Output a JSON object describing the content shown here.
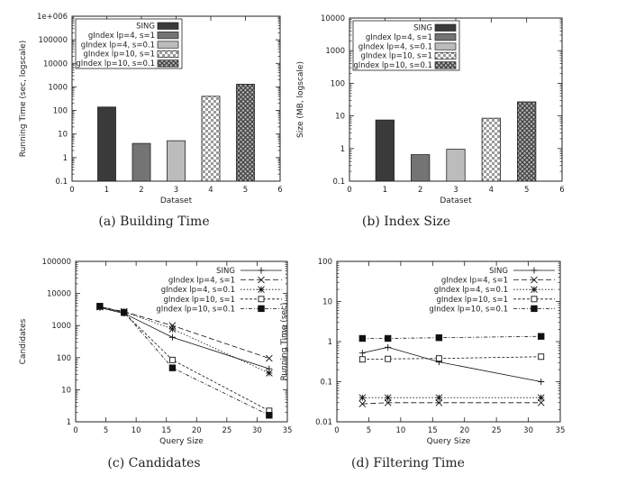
{
  "figure": {
    "caption_a": "(a) Building Time",
    "caption_b": "(b) Index Size",
    "caption_c": "(c) Candidates",
    "caption_d": "(d) Filtering Time"
  },
  "chart_data": [
    {
      "id": "a",
      "type": "bar",
      "title": "(a) Building Time",
      "xlabel": "Dataset",
      "ylabel": "Running Time (sec, logscale)",
      "yscale": "log",
      "ylim": [
        0.1,
        1000000
      ],
      "xlim": [
        0,
        6
      ],
      "xticks": [
        "0",
        "1",
        "2",
        "3",
        "4",
        "5",
        "6"
      ],
      "yticks": [
        0.1,
        1,
        10,
        100,
        1000,
        10000,
        100000,
        1000000
      ],
      "yticklabels": [
        "0.1",
        "1",
        "10",
        "100",
        "1000",
        "10000",
        "100000",
        "1e+006"
      ],
      "legend_position": "top-left",
      "series": [
        {
          "name": "SING",
          "x": 1,
          "value": 140,
          "pattern": "dark"
        },
        {
          "name": "gIndex lp=4, s=1",
          "x": 2,
          "value": 4,
          "pattern": "mid"
        },
        {
          "name": "gIndex lp=4, s=0.1",
          "x": 3,
          "value": 5.2,
          "pattern": "light"
        },
        {
          "name": "gIndex lp=10, s=1",
          "x": 4,
          "value": 400,
          "pattern": "check"
        },
        {
          "name": "gIndex lp=10, s=0.1",
          "x": 5,
          "value": 1300,
          "pattern": "cross"
        }
      ]
    },
    {
      "id": "b",
      "type": "bar",
      "title": "(b) Index Size",
      "xlabel": "Dataset",
      "ylabel": "Size (MB, logscale)",
      "yscale": "log",
      "ylim": [
        0.1,
        10000
      ],
      "xlim": [
        0,
        6
      ],
      "xticks": [
        "0",
        "1",
        "2",
        "3",
        "4",
        "5",
        "6"
      ],
      "yticks": [
        0.1,
        1,
        10,
        100,
        1000,
        10000
      ],
      "yticklabels": [
        "0.1",
        "1",
        "10",
        "100",
        "1000",
        "10000"
      ],
      "legend_position": "top-left",
      "series": [
        {
          "name": "SING",
          "x": 1,
          "value": 7.5,
          "pattern": "dark"
        },
        {
          "name": "gIndex lp=4, s=1",
          "x": 2,
          "value": 0.65,
          "pattern": "mid"
        },
        {
          "name": "gIndex lp=4, s=0.1",
          "x": 3,
          "value": 0.95,
          "pattern": "light"
        },
        {
          "name": "gIndex lp=10, s=1",
          "x": 4,
          "value": 8.5,
          "pattern": "check"
        },
        {
          "name": "gIndex lp=10, s=0.1",
          "x": 5,
          "value": 27,
          "pattern": "cross"
        }
      ]
    },
    {
      "id": "c",
      "type": "line",
      "title": "(c) Candidates",
      "xlabel": "Query Size",
      "ylabel": "Candidates",
      "yscale": "log",
      "xlim": [
        0,
        35
      ],
      "ylim": [
        1,
        100000
      ],
      "xticks": [
        0,
        5,
        10,
        15,
        20,
        25,
        30,
        35
      ],
      "yticks": [
        1,
        10,
        100,
        1000,
        10000,
        100000
      ],
      "yticklabels": [
        "1",
        "10",
        "100",
        "1000",
        "10000",
        "100000"
      ],
      "legend_position": "top-right",
      "x": [
        4,
        8,
        16,
        32
      ],
      "series": [
        {
          "name": "SING",
          "marker": "plus",
          "dash": "",
          "values": [
            3600,
            2400,
            430,
            45
          ]
        },
        {
          "name": "gIndex lp=4, s=1",
          "marker": "x",
          "dash": "6,3",
          "values": [
            3800,
            2700,
            1000,
            95
          ]
        },
        {
          "name": "gIndex lp=4, s=0.1",
          "marker": "star",
          "dash": "1.5,2",
          "values": [
            3800,
            2700,
            780,
            33
          ]
        },
        {
          "name": "gIndex lp=10, s=1",
          "marker": "square-open",
          "dash": "3,2",
          "values": [
            3900,
            2500,
            85,
            2.2
          ]
        },
        {
          "name": "gIndex lp=10, s=0.1",
          "marker": "square-filled",
          "dash": "4,2,1,2",
          "values": [
            4000,
            2600,
            48,
            1.6
          ]
        }
      ]
    },
    {
      "id": "d",
      "type": "line",
      "title": "(d) Filtering Time",
      "xlabel": "Query Size",
      "ylabel": "Running Time (sec)",
      "yscale": "log",
      "xlim": [
        0,
        35
      ],
      "ylim": [
        0.01,
        100
      ],
      "xticks": [
        0,
        5,
        10,
        15,
        20,
        25,
        30,
        35
      ],
      "yticks": [
        0.01,
        0.1,
        1,
        10,
        100
      ],
      "yticklabels": [
        "0.01",
        "0.1",
        "1",
        "10",
        "100"
      ],
      "legend_position": "top-right",
      "x": [
        4,
        8,
        16,
        32
      ],
      "series": [
        {
          "name": "SING",
          "marker": "plus",
          "dash": "",
          "values": [
            0.52,
            0.72,
            0.31,
            0.1
          ]
        },
        {
          "name": "gIndex lp=4, s=1",
          "marker": "x",
          "dash": "6,3",
          "values": [
            0.028,
            0.03,
            0.03,
            0.03
          ]
        },
        {
          "name": "gIndex lp=4, s=0.1",
          "marker": "star",
          "dash": "1.5,2",
          "values": [
            0.04,
            0.04,
            0.04,
            0.04
          ]
        },
        {
          "name": "gIndex lp=10, s=1",
          "marker": "square-open",
          "dash": "3,2",
          "values": [
            0.36,
            0.37,
            0.38,
            0.42
          ]
        },
        {
          "name": "gIndex lp=10, s=0.1",
          "marker": "square-filled",
          "dash": "4,2,1,2",
          "values": [
            1.2,
            1.2,
            1.25,
            1.35
          ]
        }
      ]
    }
  ]
}
